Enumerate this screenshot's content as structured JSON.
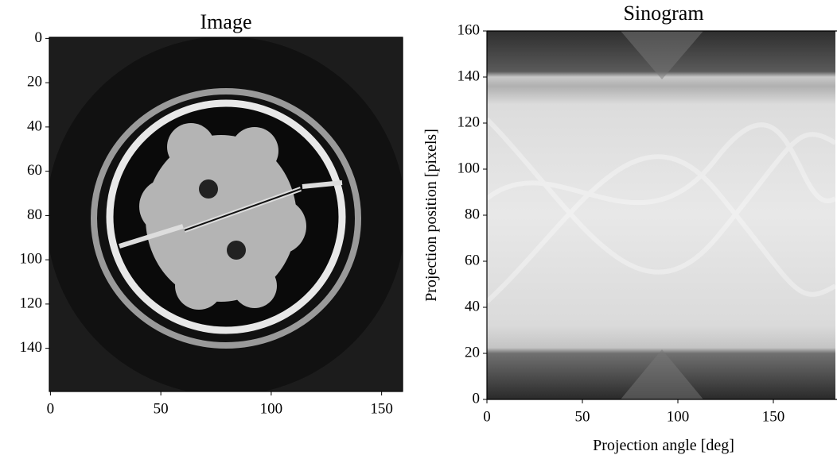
{
  "chart_data": [
    {
      "type": "image",
      "title": "Image",
      "xlim": [
        -0.5,
        159.5
      ],
      "ylim": [
        159.5,
        -0.5
      ],
      "xticks": [
        0,
        50,
        100,
        150
      ],
      "yticks": [
        0,
        20,
        40,
        60,
        80,
        100,
        120,
        140
      ]
    },
    {
      "type": "image",
      "title": "Sinogram",
      "x_label": "Projection angle [deg]",
      "y_label": "Projection position [pixels]",
      "xlim": [
        0,
        180
      ],
      "ylim": [
        0,
        160
      ],
      "xticks": [
        0,
        50,
        100,
        150
      ],
      "yticks": [
        0,
        20,
        40,
        60,
        80,
        100,
        120,
        140,
        160
      ]
    }
  ]
}
